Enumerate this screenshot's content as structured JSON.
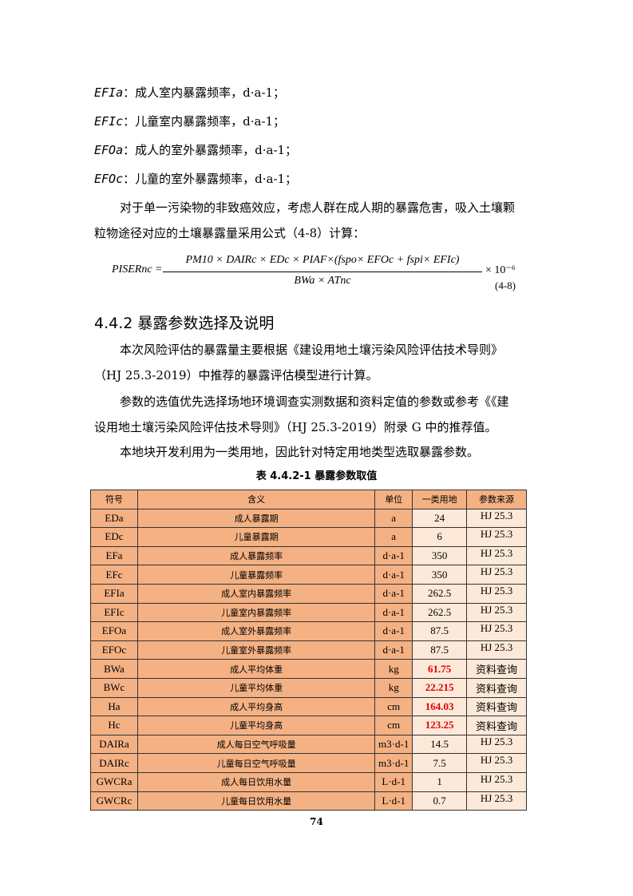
{
  "definitions": [
    {
      "symbol": "EFIa",
      "text": "：成人室内暴露频率，d·a-1；"
    },
    {
      "symbol": "EFIc",
      "text": "：儿童室内暴露频率，d·a-1；"
    },
    {
      "symbol": "EFOa",
      "text": "：成人的室外暴露频率，d·a-1；"
    },
    {
      "symbol": "EFOc",
      "text": "：儿童的室外暴露频率，d·a-1；"
    }
  ],
  "intro": [
    "对于单一污染物的非致癌效应，考虑人群在成人期的暴露危害，吸入土壤颗",
    "粒物途径对应的土壤暴露量采用公式（4-8）计算："
  ],
  "formula": {
    "lhs": "PISERnc =",
    "numerator": "PM10 × DAIRc × EDc × PIAF×(fspo× EFOc + fspi× EFIc)",
    "denominator": "BWa × ATnc",
    "multiplier": "× 10⁻⁶",
    "number": "(4-8)"
  },
  "section_heading": "4.4.2 暴露参数选择及说明",
  "paragraphs": [
    "本次风险评估的暴露量主要根据《建设用地土壤污染风险评估技术导则》",
    "（HJ 25.3-2019）中推荐的暴露评估模型进行计算。",
    "参数的选值优先选择场地环境调查实测数据和资料定值的参数或参考《《建",
    "设用地土壤污染风险评估技术导则》（HJ 25.3-2019）附录 G 中的推荐值。",
    "本地块开发利用为一类用地，因此针对特定用地类型选取暴露参数。"
  ],
  "table": {
    "caption": "表 4.4.2-1 暴露参数取值",
    "headers": [
      "符号",
      "含义",
      "单位",
      "一类用地",
      "参数来源"
    ],
    "rows": [
      [
        "EDa",
        "成人暴露期",
        "a",
        "24",
        "HJ 25.3"
      ],
      [
        "EDc",
        "儿童暴露期",
        "a",
        "6",
        "HJ 25.3"
      ],
      [
        "EFa",
        "成人暴露频率",
        "d·a-1",
        "350",
        "HJ 25.3"
      ],
      [
        "EFc",
        "儿童暴露频率",
        "d·a-1",
        "350",
        "HJ 25.3"
      ],
      [
        "EFIa",
        "成人室内暴露频率",
        "d·a-1",
        "262.5",
        "HJ 25.3"
      ],
      [
        "EFIc",
        "儿童室内暴露频率",
        "d·a-1",
        "262.5",
        "HJ 25.3"
      ],
      [
        "EFOa",
        "成人室外暴露频率",
        "d·a-1",
        "87.5",
        "HJ 25.3"
      ],
      [
        "EFOc",
        "儿童室外暴露频率",
        "d·a-1",
        "87.5",
        "HJ 25.3"
      ],
      [
        "BWa",
        "成人平均体重",
        "kg",
        "61.75",
        "资料查询"
      ],
      [
        "BWc",
        "儿童平均体重",
        "kg",
        "22.215",
        "资料查询"
      ],
      [
        "Ha",
        "成人平均身高",
        "cm",
        "164.03",
        "资料查询"
      ],
      [
        "Hc",
        "儿童平均身高",
        "cm",
        "123.25",
        "资料查询"
      ],
      [
        "DAIRa",
        "成人每日空气呼吸量",
        "m3·d-1",
        "14.5",
        "HJ 25.3"
      ],
      [
        "DAIRc",
        "儿童每日空气呼吸量",
        "m3·d-1",
        "7.5",
        "HJ 25.3"
      ],
      [
        "GWCRa",
        "成人每日饮用水量",
        "L·d-1",
        "1",
        "HJ 25.3"
      ],
      [
        "GWCRc",
        "儿童每日饮用水量",
        "L·d-1",
        "0.7",
        "HJ 25.3"
      ]
    ],
    "highlighted_rows": [
      "BWa",
      "BWc",
      "Ha",
      "Hc"
    ],
    "colors": {
      "header_fill": "#f4b183",
      "value_fill": "#fde9d9",
      "highlight_text": "#e00000"
    }
  },
  "page_number": "74"
}
